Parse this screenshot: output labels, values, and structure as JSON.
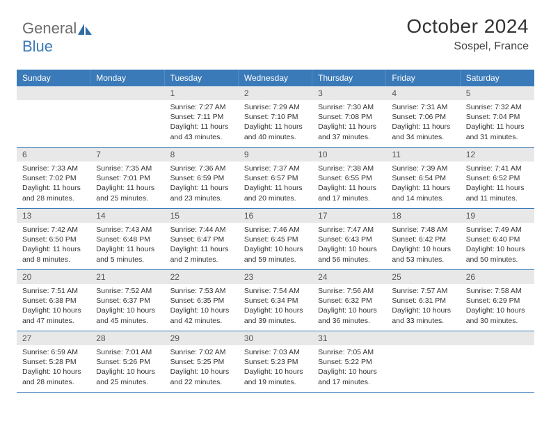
{
  "brand": {
    "part1": "General",
    "part2": "Blue"
  },
  "header": {
    "month_title": "October 2024",
    "location": "Sospel, France"
  },
  "colors": {
    "header_bg": "#3a7ab8",
    "header_text": "#ffffff",
    "daynum_bg": "#e8e8e8",
    "daynum_text": "#555555",
    "cell_border": "#3a7ab8",
    "body_text": "#333333",
    "background": "#ffffff"
  },
  "typography": {
    "month_title_fontsize": 28,
    "location_fontsize": 16,
    "dayhead_fontsize": 12,
    "daynum_fontsize": 12,
    "cell_fontsize": 10.5,
    "font_family": "Arial"
  },
  "calendar": {
    "day_headers": [
      "Sunday",
      "Monday",
      "Tuesday",
      "Wednesday",
      "Thursday",
      "Friday",
      "Saturday"
    ],
    "leading_blanks": 2,
    "days": [
      {
        "n": "1",
        "sr": "7:27 AM",
        "ss": "7:11 PM",
        "dl": "11 hours and 43 minutes."
      },
      {
        "n": "2",
        "sr": "7:29 AM",
        "ss": "7:10 PM",
        "dl": "11 hours and 40 minutes."
      },
      {
        "n": "3",
        "sr": "7:30 AM",
        "ss": "7:08 PM",
        "dl": "11 hours and 37 minutes."
      },
      {
        "n": "4",
        "sr": "7:31 AM",
        "ss": "7:06 PM",
        "dl": "11 hours and 34 minutes."
      },
      {
        "n": "5",
        "sr": "7:32 AM",
        "ss": "7:04 PM",
        "dl": "11 hours and 31 minutes."
      },
      {
        "n": "6",
        "sr": "7:33 AM",
        "ss": "7:02 PM",
        "dl": "11 hours and 28 minutes."
      },
      {
        "n": "7",
        "sr": "7:35 AM",
        "ss": "7:01 PM",
        "dl": "11 hours and 25 minutes."
      },
      {
        "n": "8",
        "sr": "7:36 AM",
        "ss": "6:59 PM",
        "dl": "11 hours and 23 minutes."
      },
      {
        "n": "9",
        "sr": "7:37 AM",
        "ss": "6:57 PM",
        "dl": "11 hours and 20 minutes."
      },
      {
        "n": "10",
        "sr": "7:38 AM",
        "ss": "6:55 PM",
        "dl": "11 hours and 17 minutes."
      },
      {
        "n": "11",
        "sr": "7:39 AM",
        "ss": "6:54 PM",
        "dl": "11 hours and 14 minutes."
      },
      {
        "n": "12",
        "sr": "7:41 AM",
        "ss": "6:52 PM",
        "dl": "11 hours and 11 minutes."
      },
      {
        "n": "13",
        "sr": "7:42 AM",
        "ss": "6:50 PM",
        "dl": "11 hours and 8 minutes."
      },
      {
        "n": "14",
        "sr": "7:43 AM",
        "ss": "6:48 PM",
        "dl": "11 hours and 5 minutes."
      },
      {
        "n": "15",
        "sr": "7:44 AM",
        "ss": "6:47 PM",
        "dl": "11 hours and 2 minutes."
      },
      {
        "n": "16",
        "sr": "7:46 AM",
        "ss": "6:45 PM",
        "dl": "10 hours and 59 minutes."
      },
      {
        "n": "17",
        "sr": "7:47 AM",
        "ss": "6:43 PM",
        "dl": "10 hours and 56 minutes."
      },
      {
        "n": "18",
        "sr": "7:48 AM",
        "ss": "6:42 PM",
        "dl": "10 hours and 53 minutes."
      },
      {
        "n": "19",
        "sr": "7:49 AM",
        "ss": "6:40 PM",
        "dl": "10 hours and 50 minutes."
      },
      {
        "n": "20",
        "sr": "7:51 AM",
        "ss": "6:38 PM",
        "dl": "10 hours and 47 minutes."
      },
      {
        "n": "21",
        "sr": "7:52 AM",
        "ss": "6:37 PM",
        "dl": "10 hours and 45 minutes."
      },
      {
        "n": "22",
        "sr": "7:53 AM",
        "ss": "6:35 PM",
        "dl": "10 hours and 42 minutes."
      },
      {
        "n": "23",
        "sr": "7:54 AM",
        "ss": "6:34 PM",
        "dl": "10 hours and 39 minutes."
      },
      {
        "n": "24",
        "sr": "7:56 AM",
        "ss": "6:32 PM",
        "dl": "10 hours and 36 minutes."
      },
      {
        "n": "25",
        "sr": "7:57 AM",
        "ss": "6:31 PM",
        "dl": "10 hours and 33 minutes."
      },
      {
        "n": "26",
        "sr": "7:58 AM",
        "ss": "6:29 PM",
        "dl": "10 hours and 30 minutes."
      },
      {
        "n": "27",
        "sr": "6:59 AM",
        "ss": "5:28 PM",
        "dl": "10 hours and 28 minutes."
      },
      {
        "n": "28",
        "sr": "7:01 AM",
        "ss": "5:26 PM",
        "dl": "10 hours and 25 minutes."
      },
      {
        "n": "29",
        "sr": "7:02 AM",
        "ss": "5:25 PM",
        "dl": "10 hours and 22 minutes."
      },
      {
        "n": "30",
        "sr": "7:03 AM",
        "ss": "5:23 PM",
        "dl": "10 hours and 19 minutes."
      },
      {
        "n": "31",
        "sr": "7:05 AM",
        "ss": "5:22 PM",
        "dl": "10 hours and 17 minutes."
      }
    ],
    "trailing_blanks": 2,
    "labels": {
      "sunrise": "Sunrise:",
      "sunset": "Sunset:",
      "daylight": "Daylight:"
    }
  }
}
